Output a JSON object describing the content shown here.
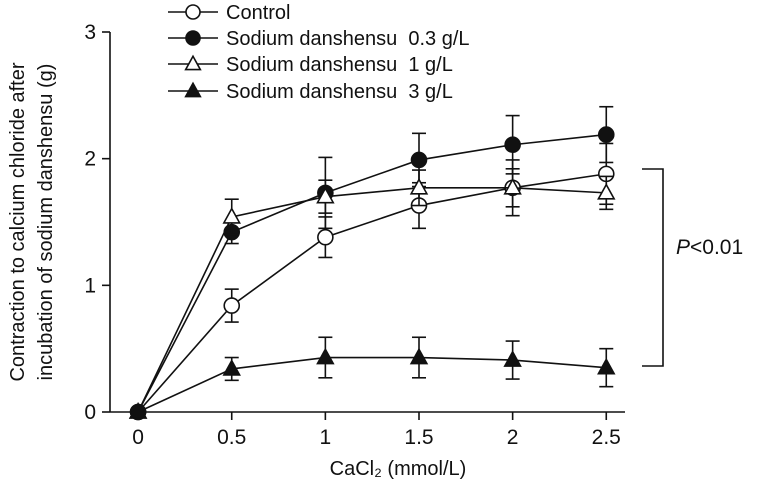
{
  "chart_data": {
    "type": "line",
    "title": "",
    "xlabel": "CaCl₂ (mmol/L)",
    "ylabel_lines": [
      "Contraction to calcium chloride after",
      "incubation of sodium danshensu (g)"
    ],
    "x": [
      0,
      0.5,
      1,
      1.5,
      2,
      2.5
    ],
    "xticks": [
      "0",
      "0.5",
      "1",
      "1.5",
      "2",
      "2.5"
    ],
    "yticks": [
      "0",
      "1",
      "2",
      "3"
    ],
    "xlim": [
      -0.15,
      2.6
    ],
    "ylim": [
      0,
      3
    ],
    "grid": false,
    "legend_position": "top-left",
    "series": [
      {
        "name": "Control",
        "marker": "circle-open",
        "values": [
          0,
          0.84,
          1.38,
          1.63,
          1.77,
          1.88
        ],
        "errors": [
          0,
          0.13,
          0.16,
          0.18,
          0.22,
          0.24
        ]
      },
      {
        "name": "Sodium danshensu  0.3 g/L",
        "marker": "circle-filled",
        "values": [
          0,
          1.42,
          1.73,
          1.99,
          2.11,
          2.19
        ],
        "errors": [
          0,
          0.09,
          0.28,
          0.21,
          0.23,
          0.22
        ]
      },
      {
        "name": "Sodium danshensu  1 g/L",
        "marker": "triangle-open",
        "values": [
          0,
          1.54,
          1.7,
          1.77,
          1.77,
          1.73
        ],
        "errors": [
          0,
          0.14,
          0.13,
          0.14,
          0.15,
          0.13
        ]
      },
      {
        "name": "Sodium danshensu  3 g/L",
        "marker": "triangle-filled",
        "values": [
          0,
          0.34,
          0.43,
          0.43,
          0.41,
          0.35
        ],
        "errors": [
          0,
          0.09,
          0.16,
          0.16,
          0.15,
          0.15
        ]
      }
    ],
    "annotation": {
      "italic_part": "P",
      "rest": "<0.01"
    }
  },
  "colors": {
    "line": "#111111",
    "background": "#ffffff"
  }
}
